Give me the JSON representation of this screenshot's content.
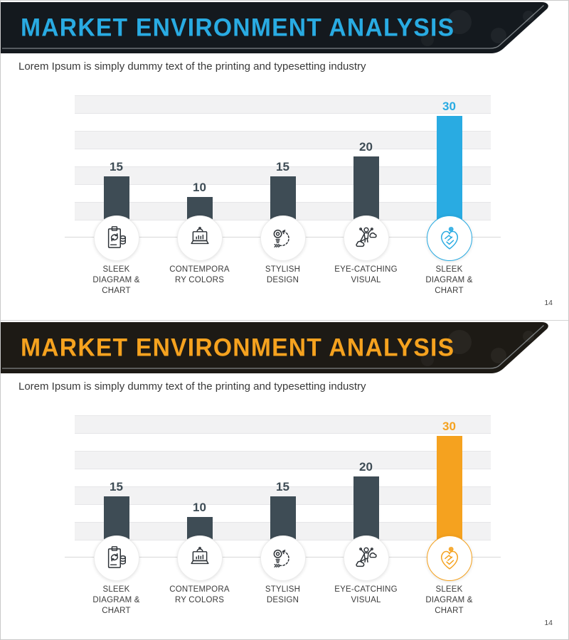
{
  "slides": [
    {
      "title": "MARKET ENVIRONMENT ANALYSIS",
      "subtitle": "Lorem Ipsum is simply dummy text of the printing and typesetting industry",
      "page_number": "14",
      "accent_color": "#29abe2",
      "banner_bg_color": "#14191e"
    },
    {
      "title": "MARKET ENVIRONMENT ANALYSIS",
      "subtitle": "Lorem Ipsum is simply dummy text of the printing and typesetting industry",
      "page_number": "14",
      "accent_color": "#f5a21f",
      "banner_bg_color": "#1d1a15"
    }
  ],
  "chart_data": [
    {
      "type": "bar",
      "title": "MARKET ENVIRONMENT ANALYSIS",
      "categories": [
        "SLEEK DIAGRAM & CHART",
        "CONTEMPORARY COLORS",
        "STYLISH DESIGN",
        "EYE-CATCHING VISUAL",
        "SLEEK DIAGRAM & CHART"
      ],
      "categories_display": [
        [
          "SLEEK",
          "DIAGRAM &",
          "CHART"
        ],
        [
          "CONTEMPORA",
          "RY COLORS"
        ],
        [
          "STYLISH",
          "DESIGN"
        ],
        [
          "EYE-CATCHING",
          "VISUAL"
        ],
        [
          "SLEEK",
          "DIAGRAM &",
          "CHART"
        ]
      ],
      "values": [
        15,
        10,
        15,
        20,
        30
      ],
      "highlight_index": 4,
      "bar_color": "#3e4c55",
      "highlight_color": "#29abe2",
      "ylim": [
        0,
        35
      ],
      "grid": "horizontal stripes, no axis labels",
      "legend": "none",
      "icons": [
        "report-clipboard-icon",
        "ecommerce-laptop-icon",
        "idea-lightbulb-icon",
        "superhero-visual-icon",
        "handshake-heart-icon"
      ]
    },
    {
      "type": "bar",
      "title": "MARKET ENVIRONMENT ANALYSIS",
      "categories": [
        "SLEEK DIAGRAM & CHART",
        "CONTEMPORARY COLORS",
        "STYLISH DESIGN",
        "EYE-CATCHING VISUAL",
        "SLEEK DIAGRAM & CHART"
      ],
      "categories_display": [
        [
          "SLEEK",
          "DIAGRAM &",
          "CHART"
        ],
        [
          "CONTEMPORA",
          "RY COLORS"
        ],
        [
          "STYLISH",
          "DESIGN"
        ],
        [
          "EYE-CATCHING",
          "VISUAL"
        ],
        [
          "SLEEK",
          "DIAGRAM &",
          "CHART"
        ]
      ],
      "values": [
        15,
        10,
        15,
        20,
        30
      ],
      "highlight_index": 4,
      "bar_color": "#3e4c55",
      "highlight_color": "#f5a21f",
      "ylim": [
        0,
        35
      ],
      "grid": "horizontal stripes, no axis labels",
      "legend": "none",
      "icons": [
        "report-clipboard-icon",
        "ecommerce-laptop-icon",
        "idea-lightbulb-icon",
        "superhero-visual-icon",
        "handshake-heart-icon"
      ]
    }
  ]
}
